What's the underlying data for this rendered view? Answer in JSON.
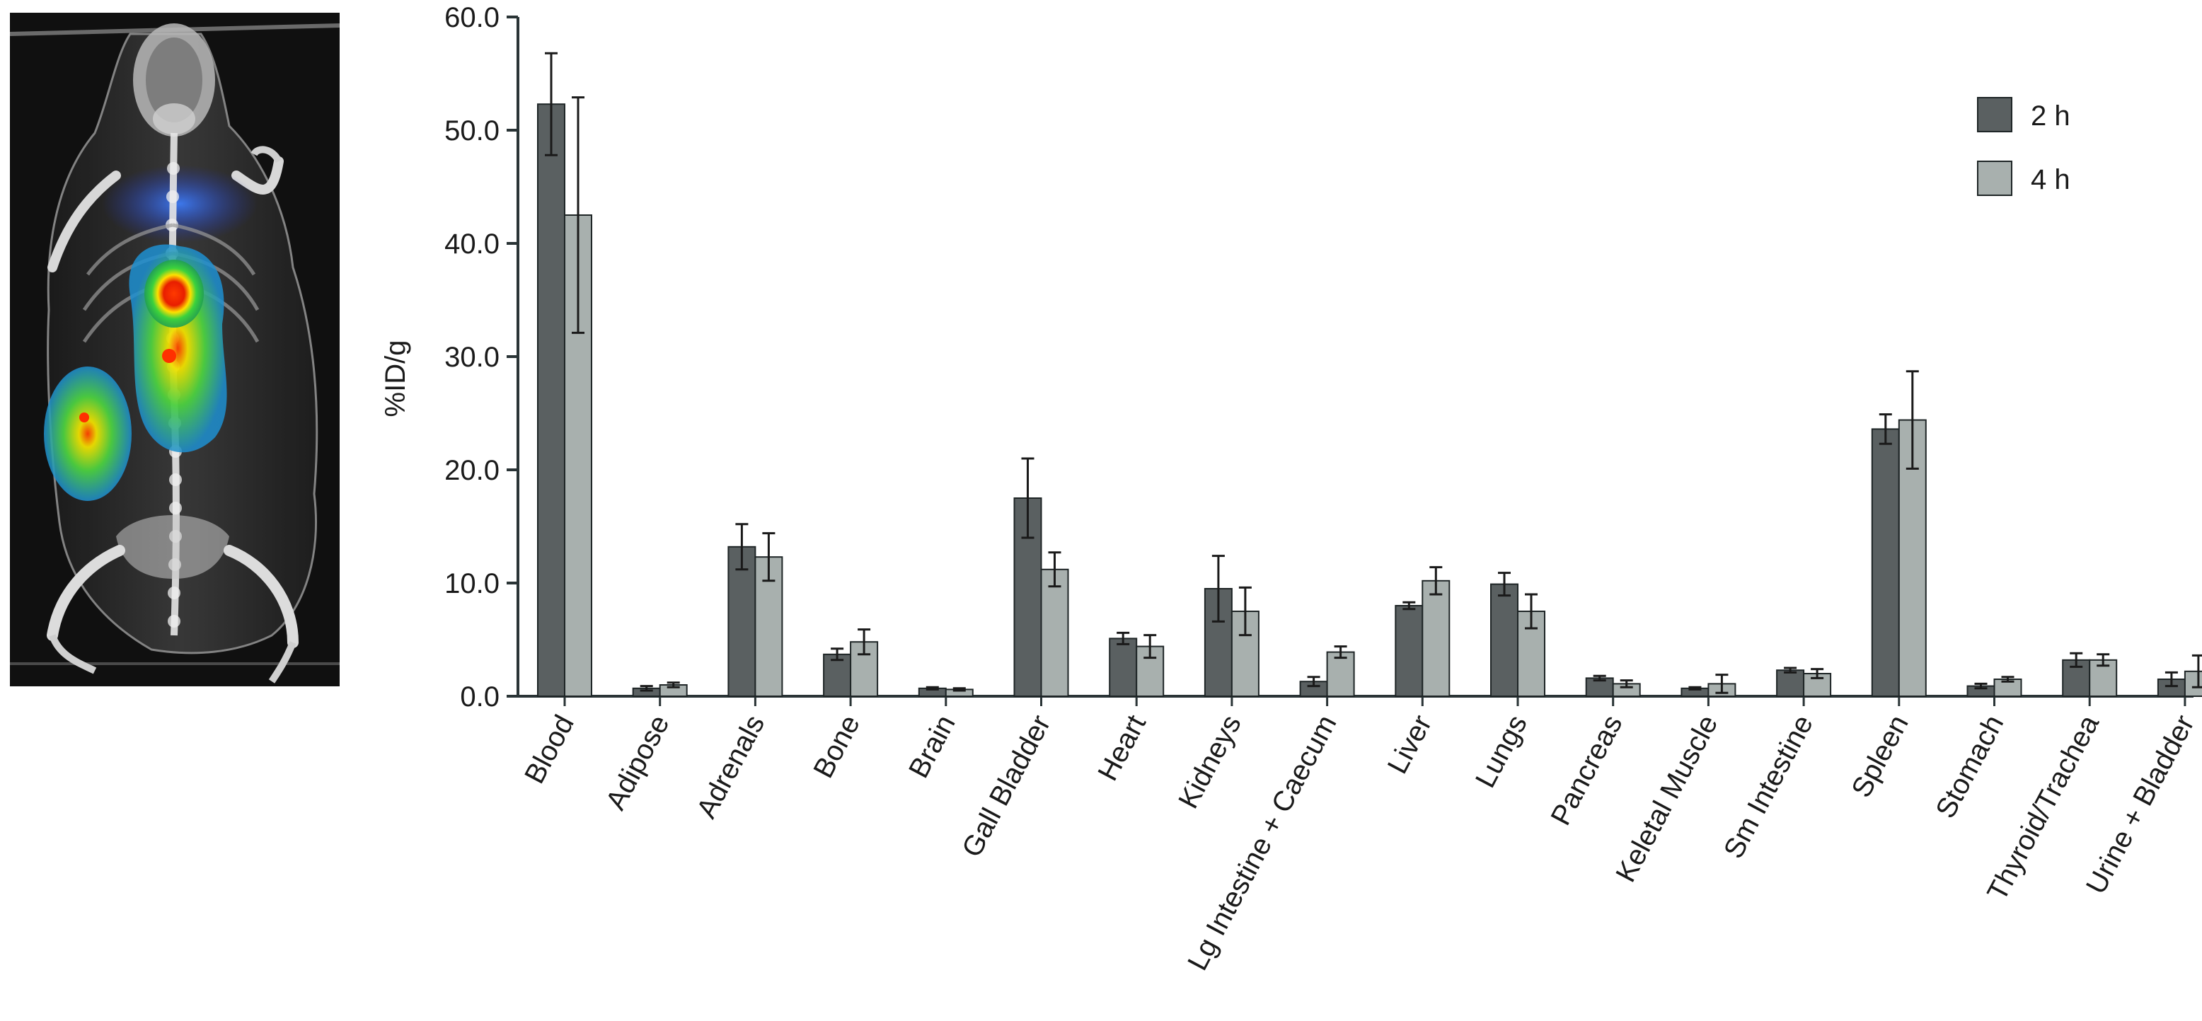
{
  "image_panel": {
    "description_icon": "spect-ct-mouse-scan-icon"
  },
  "colors": {
    "series_2h": "#5a6061",
    "series_4h": "#a8b0ae",
    "axis": "#2a3436",
    "error_bar": "#1a1a1a"
  },
  "chart_data": {
    "type": "bar",
    "title": "",
    "xlabel": "",
    "ylabel": "%ID/g",
    "ylim": [
      0,
      60
    ],
    "yticks": [
      "0.0",
      "10.0",
      "20.0",
      "30.0",
      "40.0",
      "50.0",
      "60.0"
    ],
    "ytick_values": [
      0,
      10,
      20,
      30,
      40,
      50,
      60
    ],
    "grid": false,
    "legend_position": "top-right",
    "categories": [
      "Blood",
      "Adipose",
      "Adrenals",
      "Bone",
      "Brain",
      "Gall Bladder",
      "Heart",
      "Kidneys",
      "Lg Intestine + Caecum",
      "Liver",
      "Lungs",
      "Pancreas",
      "Keletal Muscle",
      "Sm Intestine",
      "Spleen",
      "Stomach",
      "Thyroid/Trachea",
      "Urine + Bladder"
    ],
    "series": [
      {
        "name": "2 h",
        "values": [
          52.3,
          0.7,
          13.2,
          3.7,
          0.7,
          17.5,
          5.1,
          9.5,
          1.3,
          8.0,
          9.9,
          1.6,
          0.7,
          2.3,
          23.6,
          0.9,
          3.2,
          1.5
        ],
        "errors": [
          4.5,
          0.2,
          2.0,
          0.5,
          0.1,
          3.5,
          0.5,
          2.9,
          0.4,
          0.3,
          1.0,
          0.2,
          0.1,
          0.2,
          1.3,
          0.2,
          0.6,
          0.6
        ]
      },
      {
        "name": "4 h",
        "values": [
          42.5,
          1.0,
          12.3,
          4.8,
          0.6,
          11.2,
          4.4,
          7.5,
          3.9,
          10.2,
          7.5,
          1.1,
          1.1,
          2.0,
          24.4,
          1.5,
          3.2,
          2.2
        ],
        "errors": [
          10.4,
          0.2,
          2.1,
          1.1,
          0.1,
          1.5,
          1.0,
          2.1,
          0.5,
          1.2,
          1.5,
          0.3,
          0.8,
          0.4,
          4.3,
          0.2,
          0.5,
          1.4
        ]
      }
    ]
  }
}
